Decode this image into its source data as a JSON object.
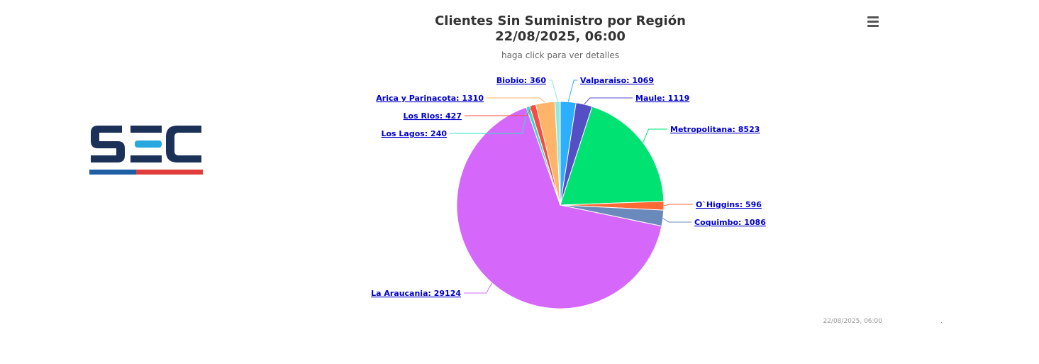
{
  "chart_data": {
    "type": "pie",
    "title": "Clientes Sin Suministro por Región",
    "title_line2": "22/08/2025, 06:00",
    "subtitle": "haga click para ver detalles",
    "series": [
      {
        "name": "Valparaiso",
        "label": "Valparaiso: 1069",
        "value": 1069,
        "color": "#2CAFFE"
      },
      {
        "name": "Maule",
        "label": "Maule: 1119",
        "value": 1119,
        "color": "#544FC5"
      },
      {
        "name": "Metropolitana",
        "label": "Metropolitana: 8523",
        "value": 8523,
        "color": "#00E272"
      },
      {
        "name": "O`Higgins",
        "label": "O`Higgins: 596",
        "value": 596,
        "color": "#FE6A35"
      },
      {
        "name": "Coquimbo",
        "label": "Coquimbo: 1086",
        "value": 1086,
        "color": "#6B8ABC"
      },
      {
        "name": "La Araucania",
        "label": "La Araucania: 29124",
        "value": 29124,
        "color": "#D568FB"
      },
      {
        "name": "Los Lagos",
        "label": "Los Lagos: 240",
        "value": 240,
        "color": "#2EE0CA"
      },
      {
        "name": "Los Rios",
        "label": "Los Rios: 427",
        "value": 427,
        "color": "#FA4B42"
      },
      {
        "name": "Arica y Parinacota",
        "label": "Arica y Parinacota: 1310",
        "value": 1310,
        "color": "#FEB56A"
      },
      {
        "name": "Biobio",
        "label": "Biobio: 360",
        "value": 360,
        "color": "#91E8E1"
      }
    ]
  },
  "credit": "22/08/2025, 06:00",
  "credit_dot": ".",
  "logo": {
    "text": "SEC",
    "colors": {
      "dark": "#1b3158",
      "accent": "#29a8e0",
      "blue": "#1f5fa6",
      "red": "#e03c3c"
    }
  },
  "menu_icon": "hamburger-menu-icon"
}
